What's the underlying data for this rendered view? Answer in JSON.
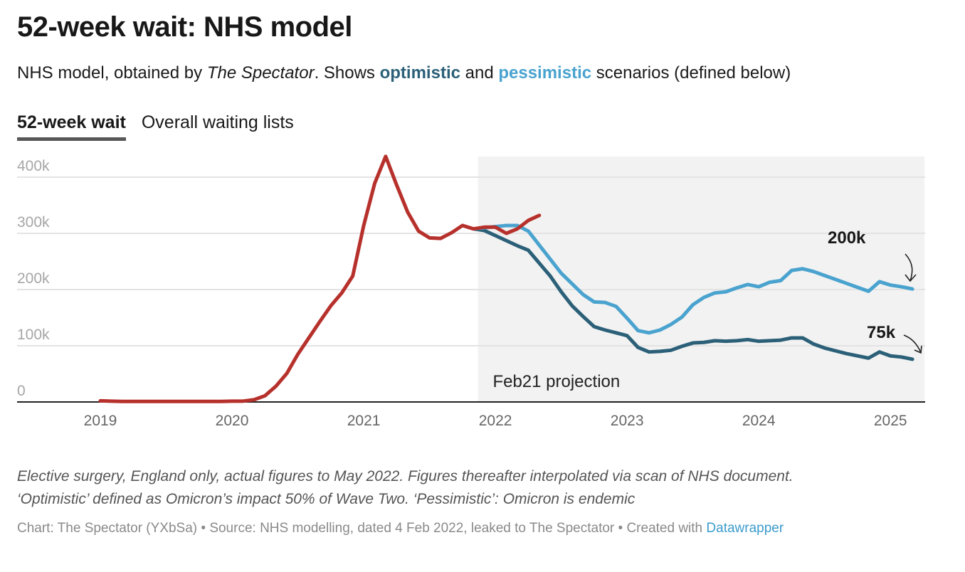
{
  "header": {
    "title": "52-week wait: NHS model",
    "subtitle_pre": "NHS model, obtained by ",
    "subtitle_italic": "The Spectator",
    "subtitle_mid": ". Shows ",
    "subtitle_optimistic": "optimistic",
    "subtitle_and": " and ",
    "subtitle_pessimistic": "pessimistic",
    "subtitle_post": " scenarios (defined below)"
  },
  "tabs": [
    {
      "label": "52-week wait",
      "active": true
    },
    {
      "label": "Overall waiting lists",
      "active": false
    }
  ],
  "colors": {
    "actual": "#b7312c",
    "optimistic": "#2b6078",
    "pessimistic": "#4aa3cf",
    "projection_bg": "#f2f2f2",
    "grid": "#e3e3e3"
  },
  "chart_data": {
    "type": "line",
    "title": "52-week wait: NHS model",
    "xlabel": "",
    "ylabel": "",
    "ylim": [
      0,
      440000
    ],
    "yticks": [
      0,
      100000,
      200000,
      300000,
      400000
    ],
    "ytick_labels": [
      "0",
      "100k",
      "200k",
      "300k",
      "400k"
    ],
    "xtick_labels": [
      "2019",
      "2020",
      "2021",
      "2022",
      "2023",
      "2024",
      "2025"
    ],
    "x_unit": "months since Jan 2019",
    "grid": true,
    "shaded_region": {
      "from_month": 34.4,
      "to_month": 75.1,
      "label": "Feb21 projection"
    },
    "series": [
      {
        "name": "Actual",
        "start_month": 0,
        "values": [
          2000,
          1500,
          1000,
          1000,
          1000,
          1000,
          1000,
          1000,
          1000,
          1000,
          1000,
          1000,
          1500,
          1500,
          4000,
          11000,
          28000,
          51000,
          85000,
          114000,
          143000,
          171000,
          194000,
          224000,
          314000,
          389000,
          437000,
          386000,
          338000,
          304000,
          292000,
          291000,
          301000,
          314000,
          308000,
          311000,
          311000,
          300000,
          308000,
          323000,
          332000
        ]
      },
      {
        "name": "Optimistic",
        "start_month": 34,
        "values": [
          308000,
          305000,
          296000,
          287000,
          278000,
          270000,
          247000,
          224000,
          196000,
          171000,
          152000,
          134000,
          128000,
          123000,
          118000,
          97000,
          89000,
          90000,
          92000,
          99000,
          105000,
          106000,
          109000,
          108000,
          109000,
          111000,
          108000,
          109000,
          110000,
          114000,
          114000,
          103000,
          96000,
          91000,
          86000,
          82000,
          78000,
          89000,
          82000,
          80000,
          76000
        ]
      },
      {
        "name": "Pessimistic",
        "start_month": 34,
        "values": [
          308000,
          310000,
          312000,
          314000,
          314000,
          304000,
          279000,
          254000,
          229000,
          210000,
          191000,
          178000,
          177000,
          170000,
          149000,
          127000,
          123000,
          128000,
          138000,
          151000,
          173000,
          186000,
          194000,
          196000,
          203000,
          209000,
          205000,
          213000,
          216000,
          234000,
          237000,
          232000,
          225000,
          218000,
          211000,
          204000,
          197000,
          214000,
          208000,
          205000,
          201000
        ]
      }
    ],
    "annotations": [
      {
        "text": "200k",
        "series": "Pessimistic"
      },
      {
        "text": "75k",
        "series": "Optimistic"
      },
      {
        "text": "Feb21 projection"
      }
    ]
  },
  "footer": {
    "notes_line1": "Elective surgery, England only, actual figures to May 2022. Figures thereafter interpolated via scan of NHS document.",
    "notes_line2": "‘Optimistic’ defined as Omicron’s impact 50% of Wave Two. ‘Pessimistic’: Omicron is endemic",
    "byline_pre": "Chart: The Spectator (YXbSa) • Source: NHS modelling, dated 4 Feb 2022, leaked to The Spectator • Created with ",
    "byline_link": "Datawrapper"
  }
}
